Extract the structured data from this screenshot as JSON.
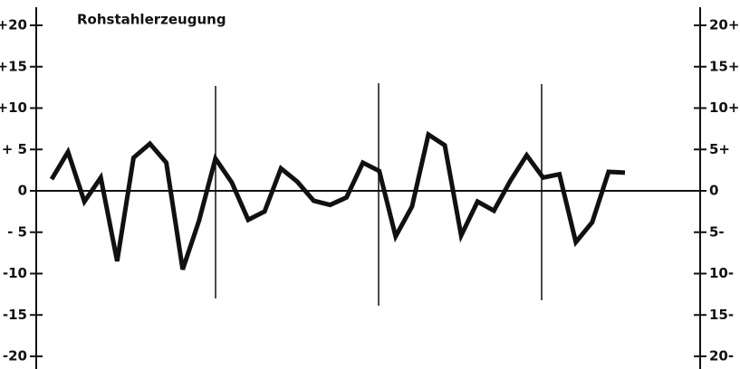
{
  "chart_data": {
    "type": "line",
    "title": "Rohstahlerzeugung",
    "categories": [
      null,
      null,
      null,
      null,
      null,
      null,
      null,
      null,
      null,
      null,
      null,
      null,
      null,
      null,
      null,
      null,
      null,
      null,
      null,
      null,
      null,
      null,
      null,
      null,
      null,
      null,
      null,
      null,
      null,
      null,
      null,
      null,
      null,
      null,
      null,
      null
    ],
    "series": [
      {
        "color": "#111111",
        "values": [
          1.4,
          4.7,
          -1.3,
          1.6,
          -8.5,
          4,
          5.7,
          3.4,
          -9.5,
          -3.6,
          3.9,
          1,
          -3.5,
          -2.5,
          2.7,
          1.1,
          -1.2,
          -1.7,
          -0.8,
          3.4,
          2.4,
          -5.5,
          -1.9,
          6.8,
          5.5,
          -5.4,
          -1.3,
          -2.4,
          1.2,
          4.3,
          1.6,
          2,
          -6.2,
          -3.8,
          2.3,
          2.2
        ]
      }
    ],
    "ylim": [
      -20,
      20
    ],
    "yticks": [
      {
        "value": 20,
        "label": "+20"
      },
      {
        "value": 15,
        "label": "+15"
      },
      {
        "value": 10,
        "label": "+10"
      },
      {
        "value": 5,
        "label": "+ 5"
      },
      0,
      {
        "value": -5,
        "label": "- 5"
      },
      {
        "value": -10,
        "label": "-10"
      },
      {
        "value": -15,
        "label": "-15"
      },
      {
        "value": -20,
        "label": "-20"
      }
    ],
    "y2lim": [
      -20,
      20
    ],
    "y2ticks": [
      {
        "value": 20,
        "label": "20+"
      },
      {
        "value": 15,
        "label": "15+"
      },
      {
        "value": 10,
        "label": "10+"
      },
      {
        "value": 5,
        "label": "5+"
      },
      0,
      {
        "value": -5,
        "label": "5-"
      },
      {
        "value": -10,
        "label": "10-"
      },
      {
        "value": -15,
        "label": "15-"
      },
      {
        "value": -20,
        "label": "20-"
      }
    ]
  }
}
